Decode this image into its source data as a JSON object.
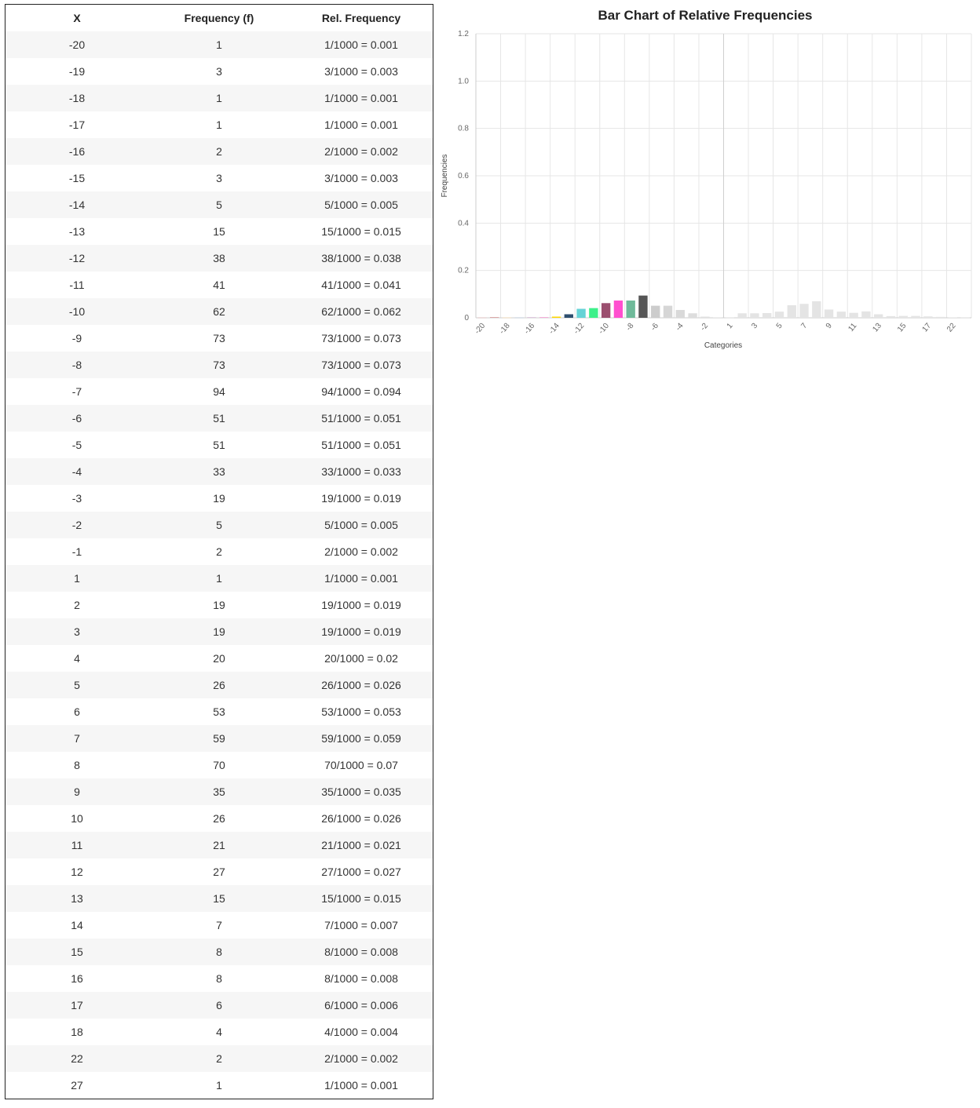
{
  "table": {
    "headers": [
      "X",
      "Frequency (f)",
      "Rel. Frequency"
    ],
    "rows": [
      [
        "-20",
        "1",
        "1/1000 = 0.001"
      ],
      [
        "-19",
        "3",
        "3/1000 = 0.003"
      ],
      [
        "-18",
        "1",
        "1/1000 = 0.001"
      ],
      [
        "-17",
        "1",
        "1/1000 = 0.001"
      ],
      [
        "-16",
        "2",
        "2/1000 = 0.002"
      ],
      [
        "-15",
        "3",
        "3/1000 = 0.003"
      ],
      [
        "-14",
        "5",
        "5/1000 = 0.005"
      ],
      [
        "-13",
        "15",
        "15/1000 = 0.015"
      ],
      [
        "-12",
        "38",
        "38/1000 = 0.038"
      ],
      [
        "-11",
        "41",
        "41/1000 = 0.041"
      ],
      [
        "-10",
        "62",
        "62/1000 = 0.062"
      ],
      [
        "-9",
        "73",
        "73/1000 = 0.073"
      ],
      [
        "-8",
        "73",
        "73/1000 = 0.073"
      ],
      [
        "-7",
        "94",
        "94/1000 = 0.094"
      ],
      [
        "-6",
        "51",
        "51/1000 = 0.051"
      ],
      [
        "-5",
        "51",
        "51/1000 = 0.051"
      ],
      [
        "-4",
        "33",
        "33/1000 = 0.033"
      ],
      [
        "-3",
        "19",
        "19/1000 = 0.019"
      ],
      [
        "-2",
        "5",
        "5/1000 = 0.005"
      ],
      [
        "-1",
        "2",
        "2/1000 = 0.002"
      ],
      [
        "1",
        "1",
        "1/1000 = 0.001"
      ],
      [
        "2",
        "19",
        "19/1000 = 0.019"
      ],
      [
        "3",
        "19",
        "19/1000 = 0.019"
      ],
      [
        "4",
        "20",
        "20/1000 = 0.02"
      ],
      [
        "5",
        "26",
        "26/1000 = 0.026"
      ],
      [
        "6",
        "53",
        "53/1000 = 0.053"
      ],
      [
        "7",
        "59",
        "59/1000 = 0.059"
      ],
      [
        "8",
        "70",
        "70/1000 = 0.07"
      ],
      [
        "9",
        "35",
        "35/1000 = 0.035"
      ],
      [
        "10",
        "26",
        "26/1000 = 0.026"
      ],
      [
        "11",
        "21",
        "21/1000 = 0.021"
      ],
      [
        "12",
        "27",
        "27/1000 = 0.027"
      ],
      [
        "13",
        "15",
        "15/1000 = 0.015"
      ],
      [
        "14",
        "7",
        "7/1000 = 0.007"
      ],
      [
        "15",
        "8",
        "8/1000 = 0.008"
      ],
      [
        "16",
        "8",
        "8/1000 = 0.008"
      ],
      [
        "17",
        "6",
        "6/1000 = 0.006"
      ],
      [
        "18",
        "4",
        "4/1000 = 0.004"
      ],
      [
        "22",
        "2",
        "2/1000 = 0.002"
      ],
      [
        "27",
        "1",
        "1/1000 = 0.001"
      ]
    ]
  },
  "chart_data": {
    "type": "bar",
    "title": "Bar Chart of Relative Frequencies",
    "xlabel": "Categories",
    "ylabel": "Frequencies",
    "ylim": [
      0,
      1.2
    ],
    "yticks": [
      "0",
      "0.2",
      "0.4",
      "0.6",
      "0.8",
      "1.0",
      "1.2"
    ],
    "grid": true,
    "categories": [
      "-20",
      "-19",
      "-18",
      "-17",
      "-16",
      "-15",
      "-14",
      "-13",
      "-12",
      "-11",
      "-10",
      "-9",
      "-8",
      "-7",
      "-6",
      "-5",
      "-4",
      "-3",
      "-2",
      "-1",
      "1",
      "2",
      "3",
      "4",
      "5",
      "6",
      "7",
      "8",
      "9",
      "10",
      "11",
      "12",
      "13",
      "14",
      "15",
      "16",
      "17",
      "18",
      "22",
      "27"
    ],
    "visible_xtick_labels": [
      "-20",
      "-18",
      "-16",
      "-14",
      "-12",
      "-10",
      "-8",
      "-6",
      "-4",
      "-2",
      "1",
      "3",
      "5",
      "7",
      "9",
      "11",
      "13",
      "15",
      "17",
      "22"
    ],
    "values": [
      0.001,
      0.003,
      0.001,
      0.001,
      0.002,
      0.003,
      0.005,
      0.015,
      0.038,
      0.041,
      0.062,
      0.073,
      0.073,
      0.094,
      0.051,
      0.051,
      0.033,
      0.019,
      0.005,
      0.002,
      0.001,
      0.019,
      0.019,
      0.02,
      0.026,
      0.053,
      0.059,
      0.07,
      0.035,
      0.026,
      0.021,
      0.027,
      0.015,
      0.007,
      0.008,
      0.008,
      0.006,
      0.004,
      0.002,
      0.001
    ],
    "colors": [
      "#e8b4b4",
      "#d9a0a0",
      "#ffd7a0",
      "#b0c4de",
      "#c8a2c8",
      "#f4a6d7",
      "#ffd700",
      "#2f4f6f",
      "#66d3d6",
      "#3df08a",
      "#9b4f6f",
      "#ff4fcf",
      "#6fba9a",
      "#555555",
      "#cccccc",
      "#d6d6d6",
      "#d9d9d9",
      "#dddddd",
      "#e0e0e0",
      "#e2e2e2",
      "#e4e4e4",
      "#e4e4e4",
      "#e4e4e4",
      "#e4e4e4",
      "#e4e4e4",
      "#e4e4e4",
      "#e4e4e4",
      "#e4e4e4",
      "#e4e4e4",
      "#e4e4e4",
      "#e4e4e4",
      "#e4e4e4",
      "#e4e4e4",
      "#e4e4e4",
      "#e4e4e4",
      "#e4e4e4",
      "#e4e4e4",
      "#e4e4e4",
      "#e4e4e4",
      "#e4e4e4"
    ]
  }
}
